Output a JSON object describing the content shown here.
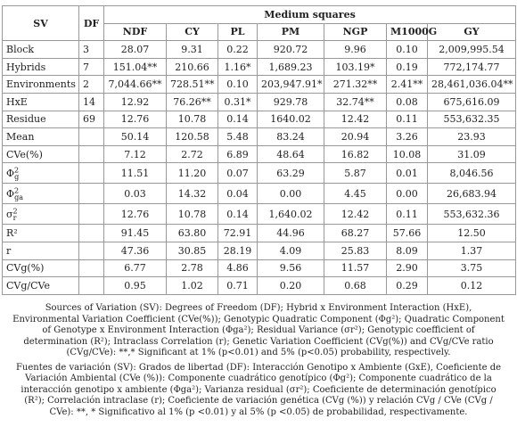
{
  "table": {
    "header": {
      "sv": "SV",
      "df": "DF",
      "group": "Medium squares",
      "columns": [
        "NDF",
        "CY",
        "PL",
        "PM",
        "NGP",
        "M1000G",
        "GY"
      ]
    },
    "rows": [
      {
        "sv": "Block",
        "df": "3",
        "values": [
          "28.07",
          "9.31",
          "0.22",
          "920.72",
          "9.96",
          "0.10",
          "2,009,995.54"
        ]
      },
      {
        "sv": "Hybrids",
        "df": "7",
        "values": [
          "151.04**",
          "210.66",
          "1.16*",
          "1,689.23",
          "103.19*",
          "0.19",
          "772,174.77"
        ]
      },
      {
        "sv": "Environments",
        "df": "2",
        "values": [
          "7,044.66**",
          "728.51**",
          "0.10",
          "203,947.91*",
          "271.32**",
          "2.41**",
          "28,461,036.04**"
        ]
      },
      {
        "sv": "HxE",
        "df": "14",
        "values": [
          "12.92",
          "76.26**",
          "0.31*",
          "929.78",
          "32.74**",
          "0.08",
          "675,616.09"
        ]
      },
      {
        "sv": "Residue",
        "df": "69",
        "values": [
          "12.76",
          "10.78",
          "0.14",
          "1640.02",
          "12.42",
          "0.11",
          "553,632.35"
        ]
      },
      {
        "sv": "Mean",
        "df": null,
        "values": [
          "50.14",
          "120.58",
          "5.48",
          "83.24",
          "20.94",
          "3.26",
          "23.93"
        ]
      },
      {
        "sv": "CVe(%)",
        "df": null,
        "values": [
          "7.12",
          "2.72",
          "6.89",
          "48.64",
          "16.82",
          "10.08",
          "31.09"
        ]
      },
      {
        "sv": {
          "base": "Φ",
          "sub": "g",
          "sup": "2"
        },
        "df": null,
        "values": [
          "11.51",
          "11.20",
          "0.07",
          "63.29",
          "5.87",
          "0.01",
          "8,046.56"
        ]
      },
      {
        "sv": {
          "base": "Φ",
          "sub": "ga",
          "sup": "2"
        },
        "df": null,
        "values": [
          "0.03",
          "14.32",
          "0.04",
          "0.00",
          "4.45",
          "0.00",
          "26,683.94"
        ]
      },
      {
        "sv": {
          "base": "σ",
          "sub": "r",
          "sup": "2"
        },
        "df": null,
        "values": [
          "12.76",
          "10.78",
          "0.14",
          "1,640.02",
          "12.42",
          "0.11",
          "553,632.36"
        ]
      },
      {
        "sv": "R²",
        "df": null,
        "values": [
          "91.45",
          "63.80",
          "72.91",
          "44.96",
          "68.27",
          "57.66",
          "12.50"
        ]
      },
      {
        "sv": "r",
        "df": null,
        "values": [
          "47.36",
          "30.85",
          "28.19",
          "4.09",
          "25.83",
          "8.09",
          "1.37"
        ]
      },
      {
        "sv": "CVg(%)",
        "df": null,
        "values": [
          "6.77",
          "2.78",
          "4.86",
          "9.56",
          "11.57",
          "2.90",
          "3.75"
        ]
      },
      {
        "sv": "CVg/CVe",
        "df": null,
        "values": [
          "0.95",
          "1.02",
          "0.71",
          "0.20",
          "0.68",
          "0.29",
          "0.12"
        ]
      }
    ]
  },
  "notes": [
    "Sources of Variation (SV): Degrees of Freedom (DF); Hybrid x Environment Interaction (HxE), Environmental Variation Coefficient (CVe(%)); Genotypic Quadratic Component (Φg²); Quadratic Component of Genotype x Environment Interaction (Φga²); Residual Variance (σr²); Genotypic coefficient of determination (R²); Intraclass Correlation (r); Genetic Variation Coefficient (CVg(%)) and CVg/CVe ratio (CVg/CVe): **,* Significant at 1% (p<0.01) and 5% (p<0.05) probability, respectively.",
    "Fuentes de variación (SV): Grados de libertad (DF): Interacción Genotipo x Ambiente (GxE), Coeficiente de Variación Ambiental (CVe (%)): Componente cuadrático genotípico (Φg²); Componente cuadrático de la interacción genotipo x ambiente (Φga²); Varianza residual (σr²); Coeficiente de determinación genotípico (R²); Correlación intraclase (r); Coeficiente de variación genética (CVg (%)) y relación CVg / CVe (CVg / CVe): **, * Significativo al 1% (p <0.01) y al 5% (p <0.05) de probabilidad, respectivamente."
  ]
}
